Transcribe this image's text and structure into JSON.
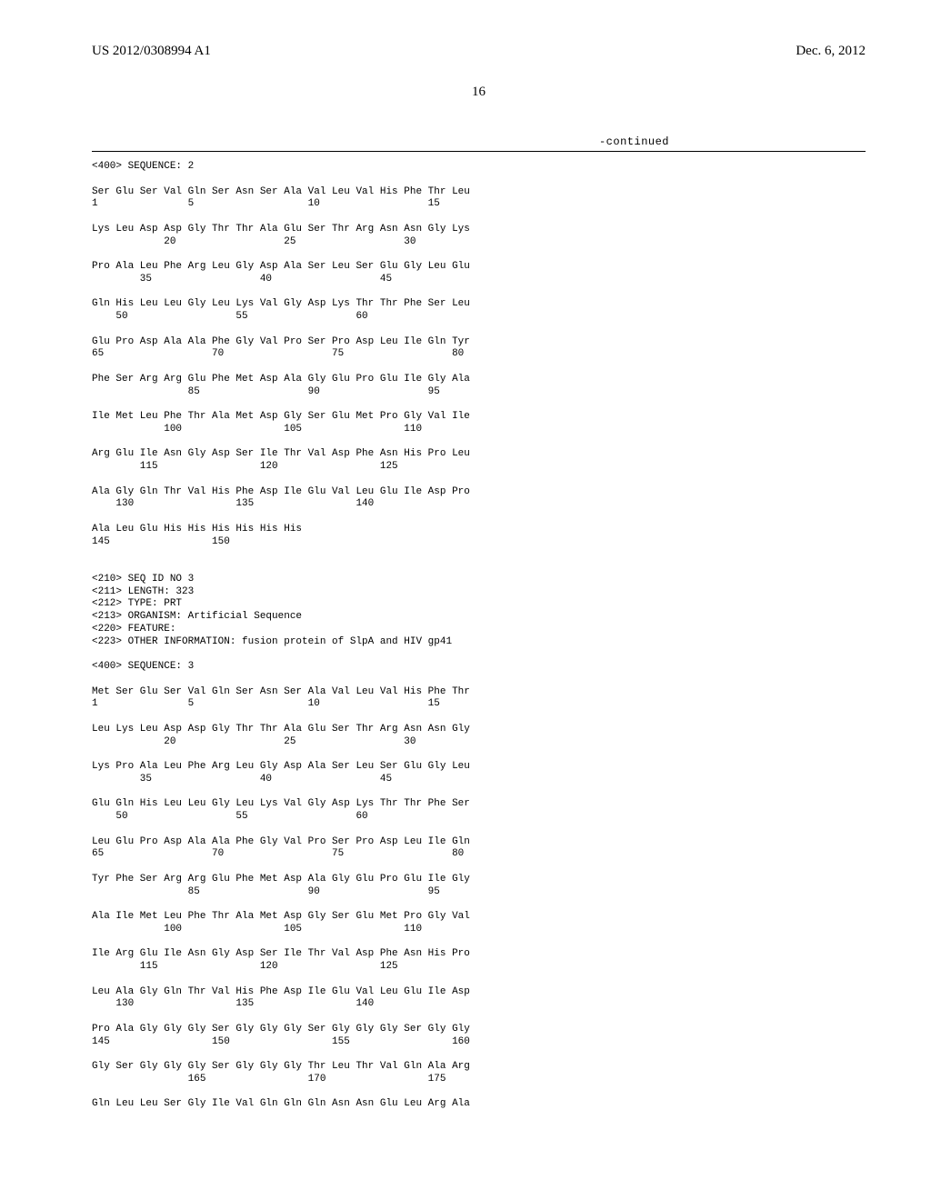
{
  "header": {
    "pub_number": "US 2012/0308994 A1",
    "pub_date": "Dec. 6, 2012"
  },
  "page_number": "16",
  "continued_label": "-continued",
  "sequence_text": "<400> SEQUENCE: 2\n\nSer Glu Ser Val Gln Ser Asn Ser Ala Val Leu Val His Phe Thr Leu\n1               5                   10                  15\n\nLys Leu Asp Asp Gly Thr Thr Ala Glu Ser Thr Arg Asn Asn Gly Lys\n            20                  25                  30\n\nPro Ala Leu Phe Arg Leu Gly Asp Ala Ser Leu Ser Glu Gly Leu Glu\n        35                  40                  45\n\nGln His Leu Leu Gly Leu Lys Val Gly Asp Lys Thr Thr Phe Ser Leu\n    50                  55                  60\n\nGlu Pro Asp Ala Ala Phe Gly Val Pro Ser Pro Asp Leu Ile Gln Tyr\n65                  70                  75                  80\n\nPhe Ser Arg Arg Glu Phe Met Asp Ala Gly Glu Pro Glu Ile Gly Ala\n                85                  90                  95\n\nIle Met Leu Phe Thr Ala Met Asp Gly Ser Glu Met Pro Gly Val Ile\n            100                 105                 110\n\nArg Glu Ile Asn Gly Asp Ser Ile Thr Val Asp Phe Asn His Pro Leu\n        115                 120                 125\n\nAla Gly Gln Thr Val His Phe Asp Ile Glu Val Leu Glu Ile Asp Pro\n    130                 135                 140\n\nAla Leu Glu His His His His His His\n145                 150\n\n\n<210> SEQ ID NO 3\n<211> LENGTH: 323\n<212> TYPE: PRT\n<213> ORGANISM: Artificial Sequence\n<220> FEATURE:\n<223> OTHER INFORMATION: fusion protein of SlpA and HIV gp41\n\n<400> SEQUENCE: 3\n\nMet Ser Glu Ser Val Gln Ser Asn Ser Ala Val Leu Val His Phe Thr\n1               5                   10                  15\n\nLeu Lys Leu Asp Asp Gly Thr Thr Ala Glu Ser Thr Arg Asn Asn Gly\n            20                  25                  30\n\nLys Pro Ala Leu Phe Arg Leu Gly Asp Ala Ser Leu Ser Glu Gly Leu\n        35                  40                  45\n\nGlu Gln His Leu Leu Gly Leu Lys Val Gly Asp Lys Thr Thr Phe Ser\n    50                  55                  60\n\nLeu Glu Pro Asp Ala Ala Phe Gly Val Pro Ser Pro Asp Leu Ile Gln\n65                  70                  75                  80\n\nTyr Phe Ser Arg Arg Glu Phe Met Asp Ala Gly Glu Pro Glu Ile Gly\n                85                  90                  95\n\nAla Ile Met Leu Phe Thr Ala Met Asp Gly Ser Glu Met Pro Gly Val\n            100                 105                 110\n\nIle Arg Glu Ile Asn Gly Asp Ser Ile Thr Val Asp Phe Asn His Pro\n        115                 120                 125\n\nLeu Ala Gly Gln Thr Val His Phe Asp Ile Glu Val Leu Glu Ile Asp\n    130                 135                 140\n\nPro Ala Gly Gly Gly Ser Gly Gly Gly Ser Gly Gly Gly Ser Gly Gly\n145                 150                 155                 160\n\nGly Ser Gly Gly Gly Ser Gly Gly Gly Thr Leu Thr Val Gln Ala Arg\n                165                 170                 175\n\nGln Leu Leu Ser Gly Ile Val Gln Gln Gln Asn Asn Glu Leu Arg Ala"
}
